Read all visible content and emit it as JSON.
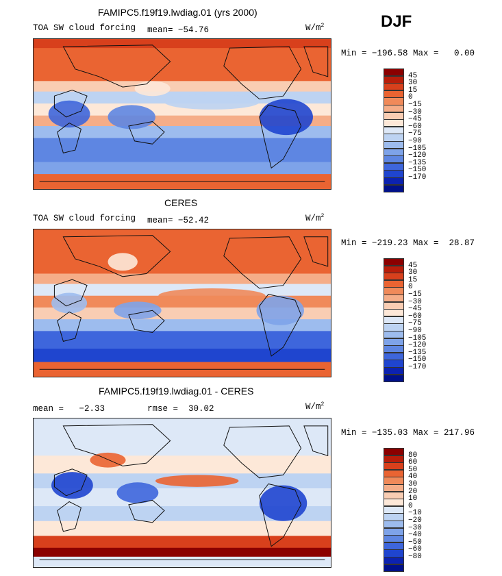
{
  "season": "DJF",
  "panels": [
    {
      "title": "FAMIPC5.f19f19.lwdiag.01 (yrs 2000)",
      "left_label": "TOA SW cloud forcing",
      "stat_label": "mean= −54.76",
      "units": "W/m",
      "units_exp": "2",
      "minmax": "Min = −196.58 Max =   0.00",
      "colorbar": {
        "colors": [
          "#8b0000",
          "#b81d0a",
          "#d8401c",
          "#ea6432",
          "#f08a5a",
          "#f5ad88",
          "#f9cdb3",
          "#fde8d8",
          "#dde8f7",
          "#bdd3f2",
          "#9dbcee",
          "#7ea3e9",
          "#5e86e2",
          "#3e66dc",
          "#1f45cf",
          "#0c22b0",
          "#00108a"
        ],
        "ticks": [
          "45",
          "30",
          "15",
          "0",
          "−15",
          "−30",
          "−45",
          "−60",
          "−75",
          "−90",
          "−105",
          "−120",
          "−135",
          "−150",
          "−170"
        ]
      }
    },
    {
      "title": "CERES",
      "left_label": "TOA SW cloud forcing",
      "stat_label": "mean= −52.42",
      "units": "W/m",
      "units_exp": "2",
      "minmax": "Min = −219.23 Max =  28.87",
      "colorbar": {
        "colors": [
          "#8b0000",
          "#b81d0a",
          "#d8401c",
          "#ea6432",
          "#f08a5a",
          "#f5ad88",
          "#f9cdb3",
          "#fde8d8",
          "#dde8f7",
          "#bdd3f2",
          "#9dbcee",
          "#7ea3e9",
          "#5e86e2",
          "#3e66dc",
          "#1f45cf",
          "#0c22b0",
          "#00108a"
        ],
        "ticks": [
          "45",
          "30",
          "15",
          "0",
          "−15",
          "−30",
          "−45",
          "−60",
          "−75",
          "−90",
          "−105",
          "−120",
          "−135",
          "−150",
          "−170"
        ]
      }
    },
    {
      "title": "FAMIPC5.f19f19.lwdiag.01 - CERES",
      "left_label": "mean =   −2.33",
      "stat_label": "rmse =  30.02",
      "units": "W/m",
      "units_exp": "2",
      "minmax": "Min = −135.03 Max = 217.96",
      "colorbar": {
        "colors": [
          "#8b0000",
          "#b81d0a",
          "#d8401c",
          "#ea6432",
          "#f08a5a",
          "#f5ad88",
          "#f9cdb3",
          "#fde8d8",
          "#dde8f7",
          "#bdd3f2",
          "#9dbcee",
          "#7ea3e9",
          "#5e86e2",
          "#3e66dc",
          "#1f45cf",
          "#0c22b0",
          "#00108a"
        ],
        "ticks": [
          "80",
          "60",
          "50",
          "40",
          "30",
          "20",
          "10",
          "0",
          "−10",
          "−20",
          "−30",
          "−40",
          "−50",
          "−60",
          "−80"
        ]
      }
    }
  ],
  "chart_data": [
    {
      "type": "heatmap",
      "title": "FAMIPC5.f19f19.lwdiag.01 (yrs 2000)",
      "variable": "TOA SW cloud forcing",
      "units": "W/m2",
      "mean": -54.76,
      "min": -196.58,
      "max": 0.0,
      "season": "DJF"
    },
    {
      "type": "heatmap",
      "title": "CERES",
      "variable": "TOA SW cloud forcing",
      "units": "W/m2",
      "mean": -52.42,
      "min": -219.23,
      "max": 28.87,
      "season": "DJF"
    },
    {
      "type": "heatmap",
      "title": "FAMIPC5.f19f19.lwdiag.01 - CERES",
      "units": "W/m2",
      "mean": -2.33,
      "rmse": 30.02,
      "min": -135.03,
      "max": 217.96,
      "season": "DJF"
    }
  ]
}
